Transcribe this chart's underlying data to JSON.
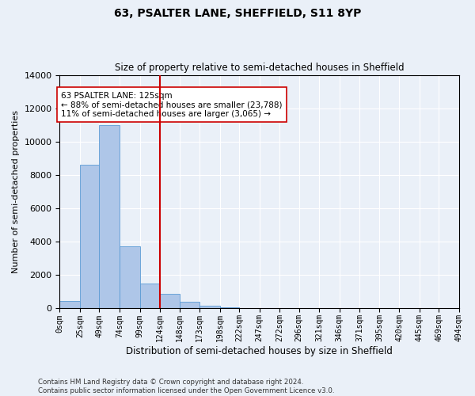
{
  "title": "63, PSALTER LANE, SHEFFIELD, S11 8YP",
  "subtitle": "Size of property relative to semi-detached houses in Sheffield",
  "xlabel": "Distribution of semi-detached houses by size in Sheffield",
  "ylabel": "Number of semi-detached properties",
  "annotation_line1": "63 PSALTER LANE: 125sqm",
  "annotation_line2": "← 88% of semi-detached houses are smaller (23,788)",
  "annotation_line3": "11% of semi-detached houses are larger (3,065) →",
  "footer1": "Contains HM Land Registry data © Crown copyright and database right 2024.",
  "footer2": "Contains public sector information licensed under the Open Government Licence v3.0.",
  "bin_edges": [
    0,
    25,
    49,
    74,
    99,
    124,
    148,
    173,
    198,
    222,
    247,
    272,
    296,
    321,
    346,
    371,
    395,
    420,
    445,
    469,
    494
  ],
  "bin_labels": [
    "0sqm",
    "25sqm",
    "49sqm",
    "74sqm",
    "99sqm",
    "124sqm",
    "148sqm",
    "173sqm",
    "198sqm",
    "222sqm",
    "247sqm",
    "272sqm",
    "296sqm",
    "321sqm",
    "346sqm",
    "371sqm",
    "395sqm",
    "420sqm",
    "445sqm",
    "469sqm",
    "494sqm"
  ],
  "bar_values": [
    400,
    8600,
    11000,
    3700,
    1450,
    850,
    350,
    100,
    30,
    0,
    0,
    0,
    0,
    0,
    0,
    0,
    0,
    0,
    0,
    0
  ],
  "bar_color": "#aec6e8",
  "bar_edgecolor": "#5b9bd5",
  "vline_color": "#cc0000",
  "vline_x": 124,
  "bg_color": "#eaf0f8",
  "plot_bg_color": "#eaf0f8",
  "grid_color": "#ffffff",
  "ylim": [
    0,
    14000
  ],
  "yticks": [
    0,
    2000,
    4000,
    6000,
    8000,
    10000,
    12000,
    14000
  ],
  "title_fontsize": 10,
  "subtitle_fontsize": 8.5,
  "ylabel_fontsize": 8,
  "xlabel_fontsize": 8.5
}
